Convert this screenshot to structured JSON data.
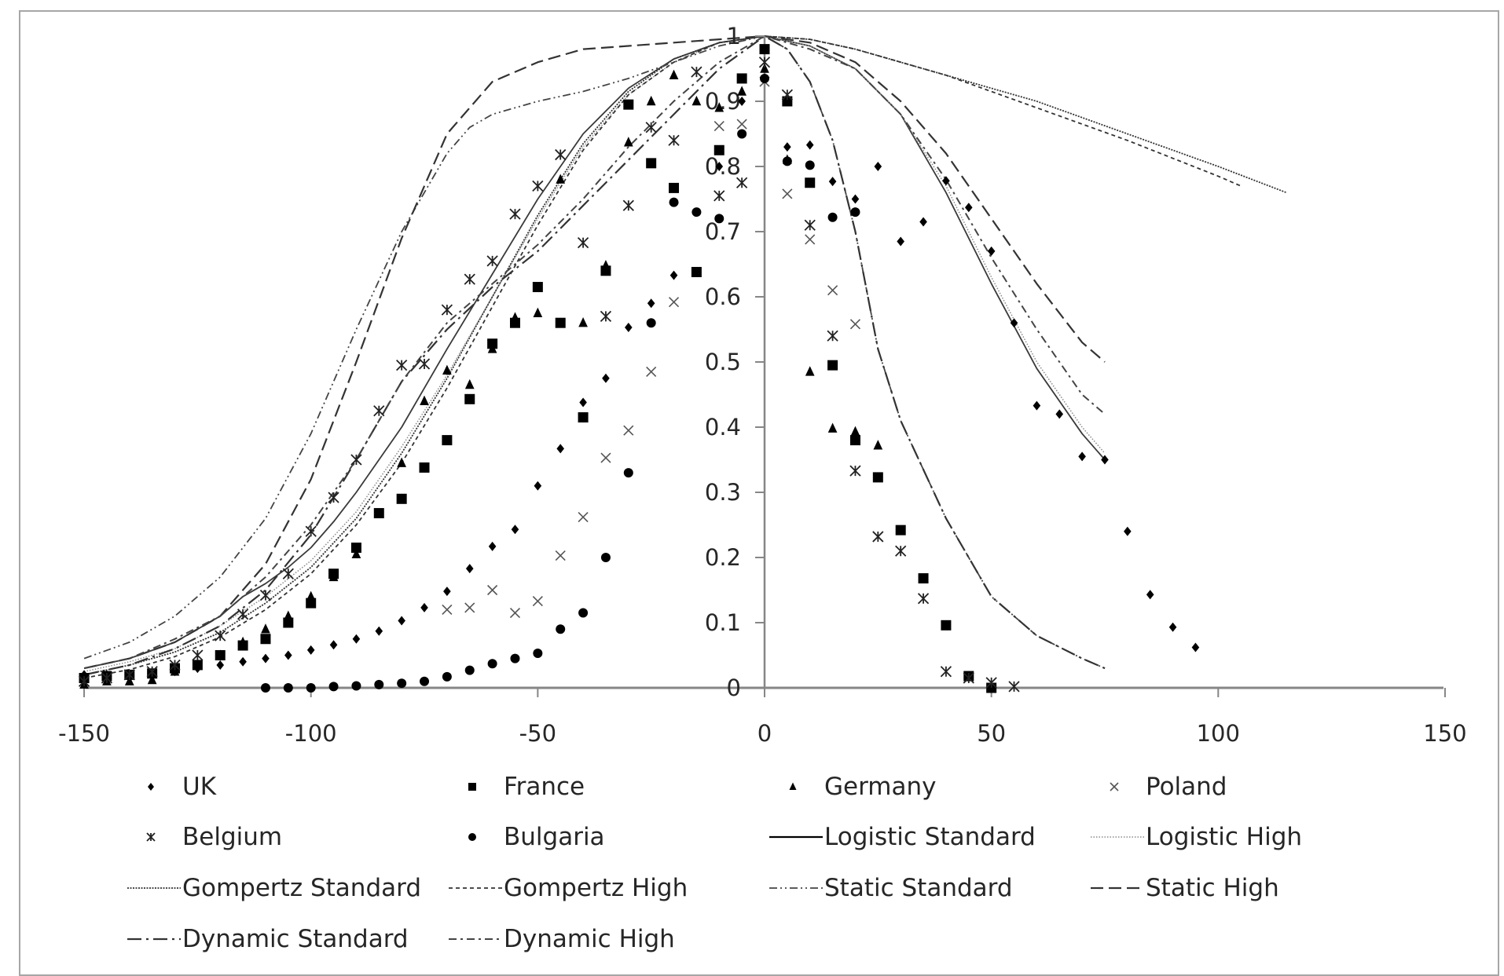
{
  "chart_data": {
    "type": "scatter",
    "title": "",
    "xlabel": "",
    "ylabel": "",
    "xlim": [
      -150,
      150
    ],
    "ylim": [
      0,
      1
    ],
    "x_ticks": [
      -150,
      -100,
      -50,
      0,
      50,
      100,
      150
    ],
    "y_ticks": [
      0,
      0.1,
      0.2,
      0.3,
      0.4,
      0.5,
      0.6,
      0.7,
      0.8,
      0.9,
      1
    ],
    "grid": false,
    "legend_position": "bottom",
    "series": [
      {
        "name": "UK",
        "kind": "marker",
        "marker": "diamond",
        "x": [
          -150,
          -145,
          -140,
          -135,
          -130,
          -125,
          -120,
          -115,
          -110,
          -105,
          -100,
          -95,
          -90,
          -85,
          -80,
          -75,
          -70,
          -65,
          -60,
          -55,
          -50,
          -45,
          -40,
          -35,
          -30,
          -25,
          -20,
          -10,
          -5,
          5,
          10,
          15,
          20,
          25,
          30,
          35,
          40,
          45,
          50,
          55,
          60,
          65,
          70,
          75,
          80,
          85,
          90,
          95
        ],
        "y": [
          0.02,
          0.02,
          0.02,
          0.02,
          0.025,
          0.03,
          0.035,
          0.04,
          0.045,
          0.05,
          0.058,
          0.066,
          0.075,
          0.087,
          0.103,
          0.123,
          0.148,
          0.183,
          0.217,
          0.243,
          0.31,
          0.367,
          0.438,
          0.475,
          0.553,
          0.59,
          0.633,
          0.8,
          0.9,
          0.83,
          0.833,
          0.777,
          0.75,
          0.8,
          0.685,
          0.715,
          0.778,
          0.737,
          0.67,
          0.56,
          0.433,
          0.42,
          0.355,
          0.35,
          0.24,
          0.143,
          0.093,
          0.062
        ]
      },
      {
        "name": "France",
        "kind": "marker",
        "marker": "square",
        "x": [
          -150,
          -145,
          -140,
          -135,
          -130,
          -125,
          -120,
          -115,
          -110,
          -105,
          -100,
          -95,
          -90,
          -85,
          -80,
          -75,
          -70,
          -65,
          -60,
          -55,
          -50,
          -45,
          -40,
          -35,
          -30,
          -25,
          -20,
          -15,
          -10,
          -5,
          0,
          5,
          10,
          15,
          20,
          25,
          30,
          35,
          40,
          45,
          50
        ],
        "y": [
          0.015,
          0.018,
          0.02,
          0.022,
          0.03,
          0.035,
          0.05,
          0.065,
          0.075,
          0.1,
          0.13,
          0.175,
          0.215,
          0.268,
          0.29,
          0.338,
          0.38,
          0.443,
          0.528,
          0.56,
          0.615,
          0.56,
          0.415,
          0.64,
          0.895,
          0.805,
          0.767,
          0.638,
          0.825,
          0.935,
          0.98,
          0.9,
          0.775,
          0.495,
          0.38,
          0.323,
          0.242,
          0.168,
          0.096,
          0.018,
          0.0
        ]
      },
      {
        "name": "Germany",
        "kind": "marker",
        "marker": "triangle",
        "x": [
          -150,
          -145,
          -140,
          -135,
          -130,
          -125,
          -120,
          -115,
          -110,
          -105,
          -100,
          -95,
          -90,
          -80,
          -75,
          -70,
          -65,
          -60,
          -55,
          -50,
          -45,
          -40,
          -35,
          -30,
          -25,
          -20,
          -15,
          -10,
          -5,
          0,
          5,
          10,
          15,
          20,
          25
        ],
        "y": [
          0.005,
          0.01,
          0.01,
          0.012,
          0.025,
          0.035,
          0.05,
          0.07,
          0.09,
          0.11,
          0.14,
          0.17,
          0.205,
          0.345,
          0.44,
          0.487,
          0.465,
          0.52,
          0.568,
          0.575,
          0.78,
          0.56,
          0.648,
          0.837,
          0.9,
          0.94,
          0.9,
          0.89,
          0.915,
          0.95,
          0.81,
          0.485,
          0.398,
          0.393,
          0.372
        ]
      },
      {
        "name": "Poland",
        "kind": "marker",
        "marker": "x",
        "x": [
          -70,
          -65,
          -60,
          -55,
          -50,
          -45,
          -40,
          -35,
          -30,
          -25,
          -20,
          -10,
          -5,
          0,
          5,
          10,
          15,
          20
        ],
        "y": [
          0.12,
          0.123,
          0.15,
          0.115,
          0.133,
          0.203,
          0.262,
          0.353,
          0.395,
          0.485,
          0.592,
          0.862,
          0.865,
          0.93,
          0.758,
          0.688,
          0.61,
          0.558
        ]
      },
      {
        "name": "Belgium",
        "kind": "marker",
        "marker": "asterisk",
        "x": [
          -150,
          -145,
          -140,
          -135,
          -130,
          -125,
          -120,
          -115,
          -110,
          -105,
          -100,
          -95,
          -90,
          -85,
          -80,
          -75,
          -70,
          -65,
          -60,
          -55,
          -50,
          -45,
          -40,
          -35,
          -30,
          -25,
          -20,
          -15,
          -10,
          -5,
          0,
          5,
          10,
          15,
          20,
          25,
          30,
          35,
          40,
          45,
          50,
          55
        ],
        "y": [
          0.01,
          0.015,
          0.02,
          0.025,
          0.035,
          0.05,
          0.08,
          0.113,
          0.142,
          0.175,
          0.24,
          0.292,
          0.35,
          0.425,
          0.495,
          0.497,
          0.58,
          0.627,
          0.655,
          0.727,
          0.77,
          0.818,
          0.683,
          0.57,
          0.74,
          0.86,
          0.84,
          0.945,
          0.755,
          0.775,
          0.96,
          0.91,
          0.71,
          0.54,
          0.333,
          0.232,
          0.21,
          0.137,
          0.025,
          0.015,
          0.008,
          0.002
        ]
      },
      {
        "name": "Bulgaria",
        "kind": "marker",
        "marker": "circle",
        "x": [
          -110,
          -105,
          -100,
          -95,
          -90,
          -85,
          -80,
          -75,
          -70,
          -65,
          -60,
          -55,
          -50,
          -45,
          -40,
          -35,
          -30,
          -25,
          -20,
          -15,
          -10,
          -5,
          0,
          5,
          10,
          15,
          20
        ],
        "y": [
          0.0,
          0.0,
          0.0,
          0.002,
          0.003,
          0.005,
          0.007,
          0.01,
          0.017,
          0.027,
          0.037,
          0.045,
          0.053,
          0.09,
          0.115,
          0.2,
          0.33,
          0.56,
          0.745,
          0.73,
          0.72,
          0.85,
          0.935,
          0.808,
          0.802,
          0.722,
          0.73
        ]
      },
      {
        "name": "Logistic Standard",
        "kind": "line",
        "dash": "solid",
        "x": [
          -150,
          -140,
          -130,
          -120,
          -115,
          -110,
          -105,
          -100,
          -95,
          -90,
          -80,
          -70,
          -60,
          -50,
          -40,
          -30,
          -20,
          -10,
          0,
          10,
          20,
          30,
          40,
          50,
          60,
          70,
          75
        ],
        "y": [
          0.03,
          0.045,
          0.07,
          0.11,
          0.14,
          0.16,
          0.185,
          0.215,
          0.255,
          0.3,
          0.4,
          0.52,
          0.635,
          0.75,
          0.85,
          0.92,
          0.965,
          0.99,
          1.0,
          0.985,
          0.95,
          0.88,
          0.76,
          0.62,
          0.49,
          0.39,
          0.35
        ]
      },
      {
        "name": "Logistic High",
        "kind": "line",
        "dash": "dotted",
        "x": [
          -150,
          -140,
          -130,
          -120,
          -110,
          -100,
          -90,
          -80,
          -70,
          -60,
          -50,
          -40,
          -30,
          -20,
          -10,
          0,
          10,
          20,
          30,
          40,
          50,
          60,
          70,
          75
        ],
        "y": [
          0.025,
          0.04,
          0.06,
          0.095,
          0.14,
          0.195,
          0.27,
          0.37,
          0.48,
          0.6,
          0.72,
          0.83,
          0.91,
          0.96,
          0.99,
          1.0,
          0.985,
          0.95,
          0.88,
          0.77,
          0.63,
          0.5,
          0.4,
          0.36
        ]
      },
      {
        "name": "Gompertz Standard",
        "kind": "line",
        "dash": "fine-dot",
        "x": [
          -150,
          -140,
          -130,
          -120,
          -110,
          -100,
          -90,
          -80,
          -70,
          -60,
          -50,
          -40,
          -30,
          -20,
          -10,
          0,
          10,
          20,
          40,
          60,
          80,
          100,
          115
        ],
        "y": [
          0.02,
          0.035,
          0.055,
          0.085,
          0.13,
          0.185,
          0.26,
          0.36,
          0.475,
          0.6,
          0.725,
          0.835,
          0.915,
          0.965,
          0.99,
          1.0,
          0.995,
          0.98,
          0.94,
          0.9,
          0.85,
          0.8,
          0.76
        ]
      },
      {
        "name": "Gompertz High",
        "kind": "line",
        "dash": "short-dash",
        "x": [
          -150,
          -140,
          -130,
          -120,
          -110,
          -100,
          -90,
          -80,
          -70,
          -60,
          -50,
          -40,
          -30,
          -20,
          -10,
          0,
          10,
          20,
          40,
          60,
          80,
          100,
          105
        ],
        "y": [
          0.015,
          0.028,
          0.048,
          0.078,
          0.12,
          0.175,
          0.25,
          0.345,
          0.46,
          0.585,
          0.71,
          0.825,
          0.91,
          0.96,
          0.99,
          1.0,
          0.995,
          0.98,
          0.94,
          0.89,
          0.84,
          0.785,
          0.77
        ]
      },
      {
        "name": "Static Standard",
        "kind": "line",
        "dash": "dash-dot-dot",
        "x": [
          -150,
          -140,
          -130,
          -120,
          -110,
          -100,
          -90,
          -80,
          -70,
          -65,
          -60,
          -50,
          -40,
          -30,
          -20,
          -10,
          0,
          5,
          10,
          15,
          20,
          25,
          30,
          40,
          50,
          60,
          70,
          75
        ],
        "y": [
          0.045,
          0.07,
          0.11,
          0.17,
          0.26,
          0.39,
          0.55,
          0.7,
          0.82,
          0.86,
          0.88,
          0.9,
          0.915,
          0.935,
          0.96,
          0.985,
          1.0,
          0.98,
          0.93,
          0.84,
          0.7,
          0.52,
          0.41,
          0.26,
          0.14,
          0.08,
          0.045,
          0.03
        ]
      },
      {
        "name": "Static High",
        "kind": "line",
        "dash": "long-dash",
        "x": [
          -150,
          -140,
          -130,
          -120,
          -110,
          -100,
          -90,
          -80,
          -70,
          -60,
          -50,
          -40,
          -30,
          -20,
          -10,
          0,
          10,
          20,
          30,
          40,
          50,
          60,
          70,
          75
        ],
        "y": [
          0.03,
          0.045,
          0.07,
          0.11,
          0.19,
          0.32,
          0.5,
          0.69,
          0.85,
          0.93,
          0.96,
          0.98,
          0.985,
          0.99,
          0.995,
          1.0,
          0.99,
          0.96,
          0.9,
          0.82,
          0.72,
          0.62,
          0.53,
          0.5
        ]
      },
      {
        "name": "Dynamic Standard",
        "kind": "line",
        "dash": "long-dash-dot",
        "x": [
          -150,
          -140,
          -130,
          -120,
          -110,
          -100,
          -90,
          -80,
          -70,
          -60,
          -50,
          -40,
          -30,
          -20,
          -10,
          0,
          5,
          10,
          15,
          20,
          25,
          30,
          40,
          50,
          60,
          70,
          75
        ],
        "y": [
          0.02,
          0.035,
          0.06,
          0.095,
          0.15,
          0.235,
          0.35,
          0.47,
          0.55,
          0.615,
          0.67,
          0.74,
          0.81,
          0.88,
          0.95,
          1.0,
          0.98,
          0.93,
          0.84,
          0.7,
          0.52,
          0.41,
          0.26,
          0.14,
          0.08,
          0.045,
          0.03
        ]
      },
      {
        "name": "Dynamic High",
        "kind": "line",
        "dash": "dash-dot",
        "x": [
          -150,
          -140,
          -130,
          -120,
          -110,
          -100,
          -90,
          -80,
          -70,
          -60,
          -50,
          -40,
          -30,
          -20,
          -10,
          0,
          10,
          20,
          30,
          40,
          50,
          60,
          70,
          75
        ],
        "y": [
          0.03,
          0.045,
          0.075,
          0.11,
          0.17,
          0.25,
          0.35,
          0.47,
          0.56,
          0.62,
          0.68,
          0.75,
          0.83,
          0.9,
          0.96,
          1.0,
          0.98,
          0.95,
          0.88,
          0.78,
          0.66,
          0.55,
          0.45,
          0.42
        ]
      }
    ]
  },
  "axes": {
    "x_tick_labels": [
      "-150",
      "-100",
      "-50",
      "0",
      "50",
      "100",
      "150"
    ],
    "y_tick_labels": [
      "0",
      "0.1",
      "0.2",
      "0.3",
      "0.4",
      "0.5",
      "0.6",
      "0.7",
      "0.8",
      "0.9",
      "1"
    ]
  },
  "legend": {
    "items": [
      {
        "label": "UK",
        "key": "diamond"
      },
      {
        "label": "France",
        "key": "square"
      },
      {
        "label": "Germany",
        "key": "triangle"
      },
      {
        "label": "Poland",
        "key": "x"
      },
      {
        "label": "Belgium",
        "key": "asterisk"
      },
      {
        "label": "Bulgaria",
        "key": "circle"
      },
      {
        "label": "Logistic Standard",
        "key": "solid"
      },
      {
        "label": "Logistic High",
        "key": "dotted"
      },
      {
        "label": "Gompertz Standard",
        "key": "fine-dot"
      },
      {
        "label": "Gompertz High",
        "key": "short-dash"
      },
      {
        "label": "Static Standard",
        "key": "dash-dot-dot"
      },
      {
        "label": "Static High",
        "key": "long-dash"
      },
      {
        "label": "Dynamic Standard",
        "key": "long-dash-dot"
      },
      {
        "label": "Dynamic High",
        "key": "dash-dot"
      }
    ]
  },
  "colors": {
    "axis": "#868686",
    "border": "#a6a6a6",
    "text": "#262626",
    "series": "#000000"
  }
}
